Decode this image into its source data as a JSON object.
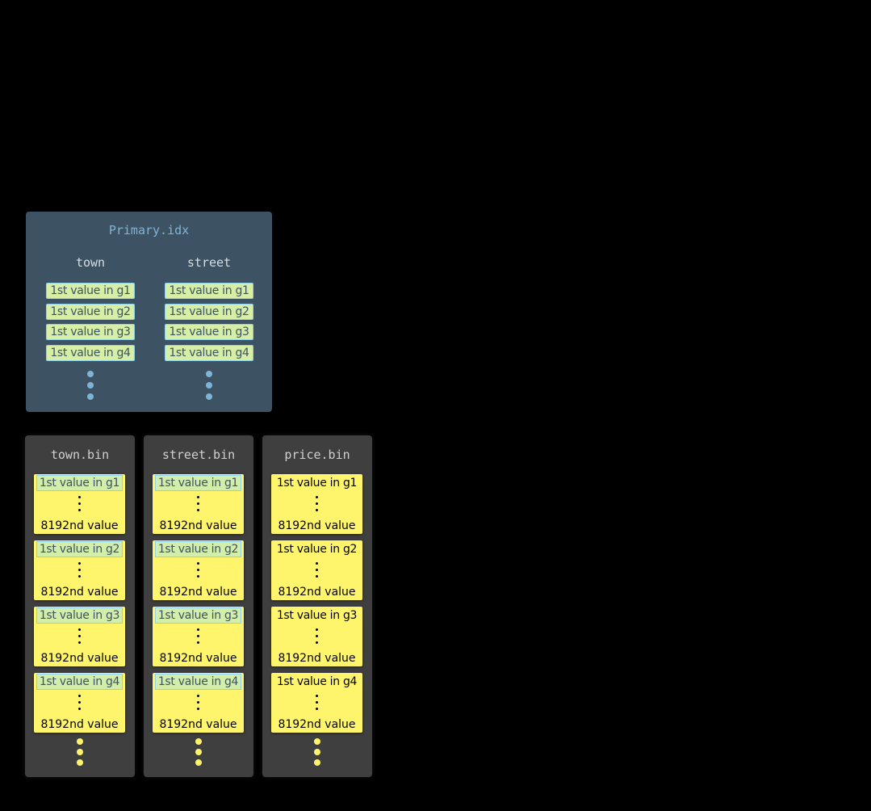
{
  "primary_index": {
    "title": "Primary.idx",
    "columns": [
      {
        "name": "town",
        "entries": [
          "1st value in g1",
          "1st value in g2",
          "1st value in g3",
          "1st value in g4"
        ]
      },
      {
        "name": "street",
        "entries": [
          "1st value in g1",
          "1st value in g2",
          "1st value in g3",
          "1st value in g4"
        ]
      }
    ],
    "dot_color": "#80b4d6",
    "background": "#3d5363"
  },
  "bin_files": [
    {
      "name": "town.bin",
      "in_primary_key": true,
      "granules": [
        {
          "first": "1st value in g1",
          "last": "8192nd value"
        },
        {
          "first": "1st value in g2",
          "last": "8192nd value"
        },
        {
          "first": "1st value in g3",
          "last": "8192nd value"
        },
        {
          "first": "1st value in g4",
          "last": "8192nd value"
        }
      ]
    },
    {
      "name": "street.bin",
      "in_primary_key": true,
      "granules": [
        {
          "first": "1st value in g1",
          "last": "8192nd value"
        },
        {
          "first": "1st value in g2",
          "last": "8192nd value"
        },
        {
          "first": "1st value in g3",
          "last": "8192nd value"
        },
        {
          "first": "1st value in g4",
          "last": "8192nd value"
        }
      ]
    },
    {
      "name": "price.bin",
      "in_primary_key": false,
      "granules": [
        {
          "first": "1st value in g1",
          "last": "8192nd value"
        },
        {
          "first": "1st value in g2",
          "last": "8192nd value"
        },
        {
          "first": "1st value in g3",
          "last": "8192nd value"
        },
        {
          "first": "1st value in g4",
          "last": "8192nd value"
        }
      ]
    }
  ],
  "colors": {
    "granule": "#fff56c",
    "index_entry": "#d6eea6",
    "bin_dots": "#fff56c"
  }
}
